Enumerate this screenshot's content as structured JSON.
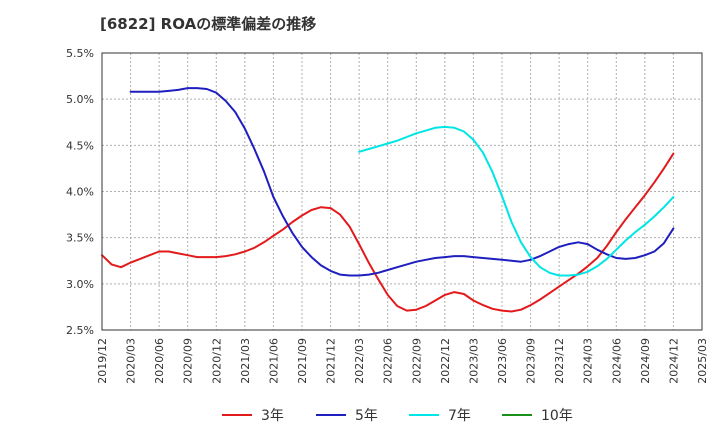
{
  "chart_data": {
    "type": "line",
    "title": "[6822]  ROAの標準偏差の推移",
    "xlabel": "",
    "ylabel": "",
    "ylim": [
      2.5,
      5.5
    ],
    "yticks": [
      "2.5%",
      "3.0%",
      "3.5%",
      "4.0%",
      "4.5%",
      "5.0%",
      "5.5%"
    ],
    "ytick_values": [
      2.5,
      3.0,
      3.5,
      4.0,
      4.5,
      5.0,
      5.5
    ],
    "xticks": [
      "2019/12",
      "2020/03",
      "2020/06",
      "2020/09",
      "2020/12",
      "2021/03",
      "2021/06",
      "2021/09",
      "2021/12",
      "2022/03",
      "2022/06",
      "2022/09",
      "2022/12",
      "2023/03",
      "2023/06",
      "2023/09",
      "2023/12",
      "2024/03",
      "2024/06",
      "2024/09",
      "2024/12",
      "2025/03"
    ],
    "grid": true,
    "legend_position": "bottom",
    "series": [
      {
        "name": "3年",
        "color": "#e31a1c",
        "x": [
          "2019/12",
          "2020/01",
          "2020/02",
          "2020/03",
          "2020/04",
          "2020/05",
          "2020/06",
          "2020/07",
          "2020/08",
          "2020/09",
          "2020/10",
          "2020/11",
          "2020/12",
          "2021/01",
          "2021/02",
          "2021/03",
          "2021/04",
          "2021/05",
          "2021/06",
          "2021/07",
          "2021/08",
          "2021/09",
          "2021/10",
          "2021/11",
          "2021/12",
          "2022/01",
          "2022/02",
          "2022/03",
          "2022/04",
          "2022/05",
          "2022/06",
          "2022/07",
          "2022/08",
          "2022/09",
          "2022/10",
          "2022/11",
          "2022/12",
          "2023/01",
          "2023/02",
          "2023/03",
          "2023/04",
          "2023/05",
          "2023/06",
          "2023/07",
          "2023/08",
          "2023/09",
          "2023/10",
          "2023/11",
          "2023/12",
          "2024/01",
          "2024/02",
          "2024/03",
          "2024/04",
          "2024/05",
          "2024/06",
          "2024/07",
          "2024/08",
          "2024/09",
          "2024/10",
          "2024/11",
          "2024/12"
        ],
        "values": [
          3.31,
          3.21,
          3.18,
          3.23,
          3.27,
          3.31,
          3.35,
          3.35,
          3.33,
          3.31,
          3.29,
          3.29,
          3.29,
          3.3,
          3.32,
          3.35,
          3.39,
          3.45,
          3.52,
          3.59,
          3.67,
          3.74,
          3.8,
          3.83,
          3.82,
          3.75,
          3.62,
          3.43,
          3.23,
          3.05,
          2.88,
          2.76,
          2.71,
          2.72,
          2.76,
          2.82,
          2.88,
          2.91,
          2.89,
          2.82,
          2.77,
          2.73,
          2.71,
          2.7,
          2.72,
          2.77,
          2.83,
          2.9,
          2.97,
          3.04,
          3.11,
          3.19,
          3.28,
          3.41,
          3.56,
          3.7,
          3.83,
          3.96,
          4.1,
          4.25,
          4.41
        ]
      },
      {
        "name": "5年",
        "color": "#1f1fbf",
        "x": [
          "2020/03",
          "2020/04",
          "2020/05",
          "2020/06",
          "2020/07",
          "2020/08",
          "2020/09",
          "2020/10",
          "2020/11",
          "2020/12",
          "2021/01",
          "2021/02",
          "2021/03",
          "2021/04",
          "2021/05",
          "2021/06",
          "2021/07",
          "2021/08",
          "2021/09",
          "2021/10",
          "2021/11",
          "2021/12",
          "2022/01",
          "2022/02",
          "2022/03",
          "2022/04",
          "2022/05",
          "2022/06",
          "2022/07",
          "2022/08",
          "2022/09",
          "2022/10",
          "2022/11",
          "2022/12",
          "2023/01",
          "2023/02",
          "2023/03",
          "2023/04",
          "2023/05",
          "2023/06",
          "2023/07",
          "2023/08",
          "2023/09",
          "2023/10",
          "2023/11",
          "2023/12",
          "2024/01",
          "2024/02",
          "2024/03",
          "2024/04",
          "2024/05",
          "2024/06",
          "2024/07",
          "2024/08",
          "2024/09",
          "2024/10",
          "2024/11",
          "2024/12"
        ],
        "values": [
          5.08,
          5.08,
          5.08,
          5.08,
          5.09,
          5.1,
          5.12,
          5.12,
          5.11,
          5.07,
          4.98,
          4.86,
          4.68,
          4.46,
          4.22,
          3.94,
          3.73,
          3.55,
          3.4,
          3.29,
          3.2,
          3.14,
          3.1,
          3.09,
          3.09,
          3.1,
          3.12,
          3.15,
          3.18,
          3.21,
          3.24,
          3.26,
          3.28,
          3.29,
          3.3,
          3.3,
          3.29,
          3.28,
          3.27,
          3.26,
          3.25,
          3.24,
          3.26,
          3.3,
          3.35,
          3.4,
          3.43,
          3.45,
          3.43,
          3.37,
          3.32,
          3.28,
          3.27,
          3.28,
          3.31,
          3.35,
          3.44,
          3.6
        ]
      },
      {
        "name": "7年",
        "color": "#00e5e5",
        "x": [
          "2022/03",
          "2022/04",
          "2022/05",
          "2022/06",
          "2022/07",
          "2022/08",
          "2022/09",
          "2022/10",
          "2022/11",
          "2022/12",
          "2023/01",
          "2023/02",
          "2023/03",
          "2023/04",
          "2023/05",
          "2023/06",
          "2023/07",
          "2023/08",
          "2023/09",
          "2023/10",
          "2023/11",
          "2023/12",
          "2024/01",
          "2024/02",
          "2024/03",
          "2024/04",
          "2024/05",
          "2024/06",
          "2024/07",
          "2024/08",
          "2024/09",
          "2024/10",
          "2024/11",
          "2024/12"
        ],
        "values": [
          4.43,
          4.46,
          4.49,
          4.52,
          4.55,
          4.59,
          4.63,
          4.66,
          4.69,
          4.7,
          4.69,
          4.65,
          4.56,
          4.42,
          4.21,
          3.95,
          3.67,
          3.45,
          3.29,
          3.18,
          3.12,
          3.09,
          3.09,
          3.1,
          3.13,
          3.19,
          3.27,
          3.37,
          3.47,
          3.56,
          3.64,
          3.73,
          3.83,
          3.94
        ]
      },
      {
        "name": "10年",
        "color": "#1a8f1a",
        "x": [],
        "values": []
      }
    ]
  }
}
